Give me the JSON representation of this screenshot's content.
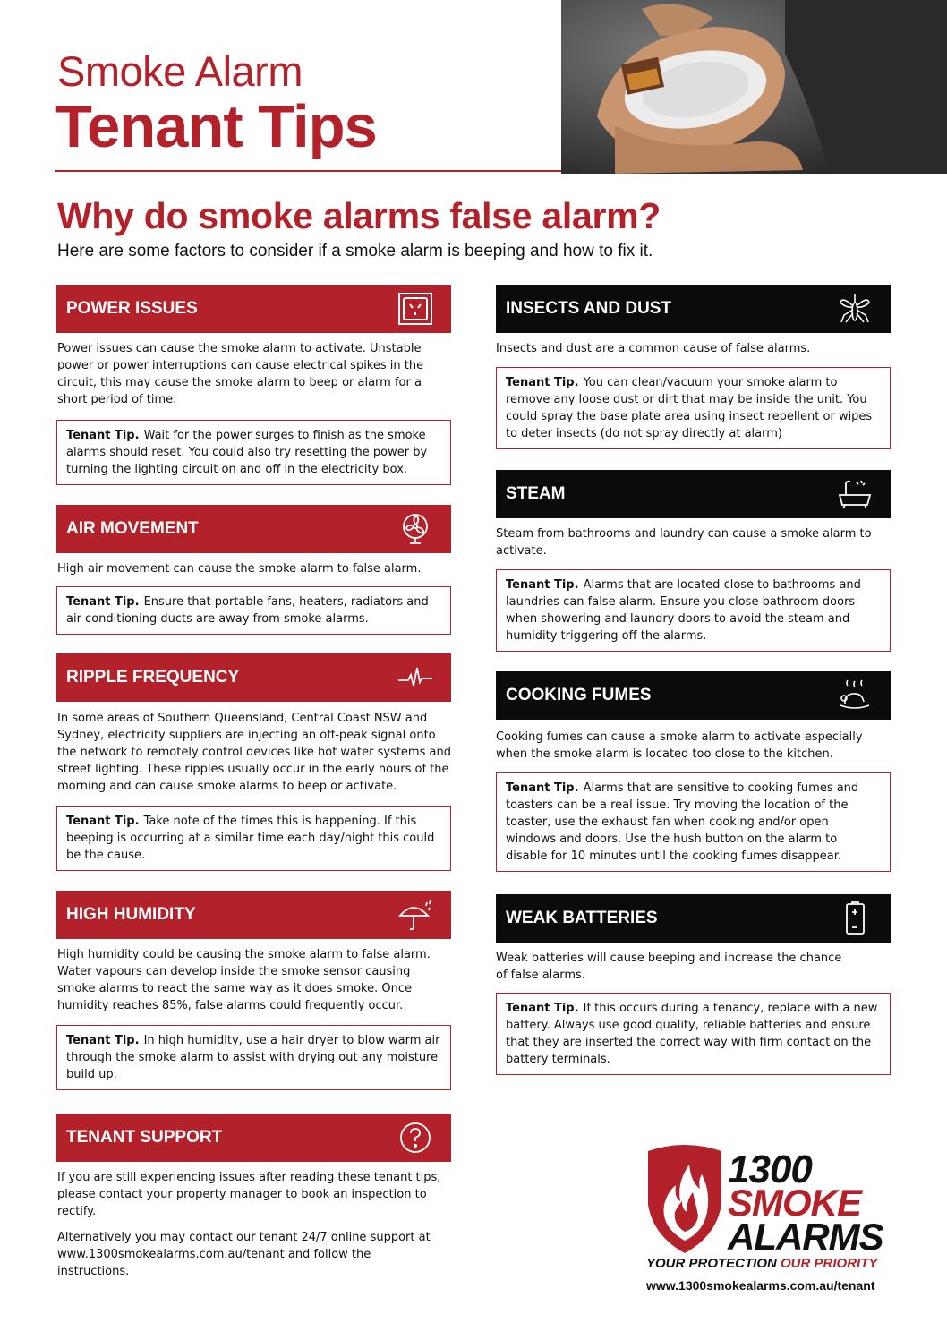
{
  "title": {
    "line1": "Smoke Alarm",
    "line2": "Tenant Tips"
  },
  "headline": "Why do smoke alarms false alarm?",
  "subheadline": "Here are some factors to consider if a smoke alarm is beeping and how to fix it.",
  "tip_label": "Tenant Tip.",
  "colors": {
    "brand_red": "#b3222a",
    "black": "#0b0b0b"
  },
  "sections": {
    "power": {
      "heading": "POWER ISSUES",
      "icon": "power-outlet-icon",
      "body": "Power issues can cause the smoke alarm to activate. Unstable power or power interruptions can cause electrical spikes in the circuit, this may cause the smoke alarm to beep or alarm for a short period of time.",
      "tip": "Wait for the power surges to finish as the smoke alarms should reset. You could also try resetting the power by turning the lighting circuit on and off in the electricity box."
    },
    "air": {
      "heading": "AIR MOVEMENT",
      "icon": "fan-icon",
      "body": "High air movement can cause the smoke alarm to false alarm.",
      "tip": "Ensure that portable fans, heaters, radiators and air conditioning ducts are away from smoke alarms."
    },
    "ripple": {
      "heading": "RIPPLE FREQUENCY",
      "icon": "pulse-icon",
      "body": "In some areas of Southern Queensland, Central Coast NSW and Sydney, electricity suppliers are injecting an off-peak signal onto the network to remotely control devices like hot water systems and street lighting. These ripples usually occur in the early hours of the morning and can cause smoke alarms to beep or activate.",
      "tip": "Take note of the times this is happening. If this beeping is occurring at a similar time each day/night this could be the cause."
    },
    "humidity": {
      "heading": "HIGH HUMIDITY",
      "icon": "umbrella-rain-icon",
      "body": "High humidity could be causing the smoke alarm to false alarm. Water vapours can develop inside the smoke sensor causing smoke alarms to react the same way as it does smoke. Once humidity reaches 85%, false alarms could frequently occur.",
      "tip": "In high humidity, use a hair dryer to blow warm air through the smoke alarm to assist with drying out any moisture build up."
    },
    "support": {
      "heading": "TENANT SUPPORT",
      "icon": "question-icon",
      "body1": "If you are still experiencing issues after reading these tenant tips, please contact your property manager to book an inspection to rectify.",
      "body2": "Alternatively you may contact our tenant 24/7 online support at www.1300smokealarms.com.au/tenant and follow the instructions."
    },
    "insects": {
      "heading": "INSECTS AND DUST",
      "icon": "mosquito-icon",
      "body": "Insects and dust are a common cause of false alarms.",
      "tip": "You can clean/vacuum your smoke alarm to remove any loose dust or dirt that may be inside the unit. You could spray the base plate area using insect repellent or wipes to deter insects (do not spray directly at alarm)"
    },
    "steam": {
      "heading": "STEAM",
      "icon": "bathtub-icon",
      "body": "Steam from bathrooms and laundry can cause a smoke alarm to activate.",
      "tip": "Alarms that are located close to bathrooms and laundries can false alarm. Ensure you close bathroom doors when showering and laundry doors to avoid the steam and humidity triggering off the alarms."
    },
    "cooking": {
      "heading": "COOKING FUMES",
      "icon": "roast-chicken-icon",
      "body": "Cooking fumes can cause a smoke alarm to activate especially when the smoke alarm is located too close to the kitchen.",
      "tip": "Alarms that are sensitive to cooking fumes and toasters can be a real issue. Try moving the location of the toaster, use the exhaust fan when cooking and/or open windows and doors. Use the hush button on the alarm to disable for 10 minutes until the cooking fumes disappear."
    },
    "batteries": {
      "heading": "WEAK BATTERIES",
      "icon": "battery-icon",
      "body": "Weak batteries will cause beeping and increase the chance of false alarms.",
      "tip": "If this occurs during a tenancy, replace with a new battery. Always use good quality, reliable batteries and ensure that they are inserted the correct way with firm contact on the battery terminals."
    }
  },
  "logo": {
    "line1": "1300",
    "line2": "SMOKE",
    "line3": "ALARMS",
    "tagline_black": "YOUR PROTECTION",
    "tagline_red": "OUR PRIORITY",
    "website": "www.1300smokealarms.com.au/tenant"
  }
}
